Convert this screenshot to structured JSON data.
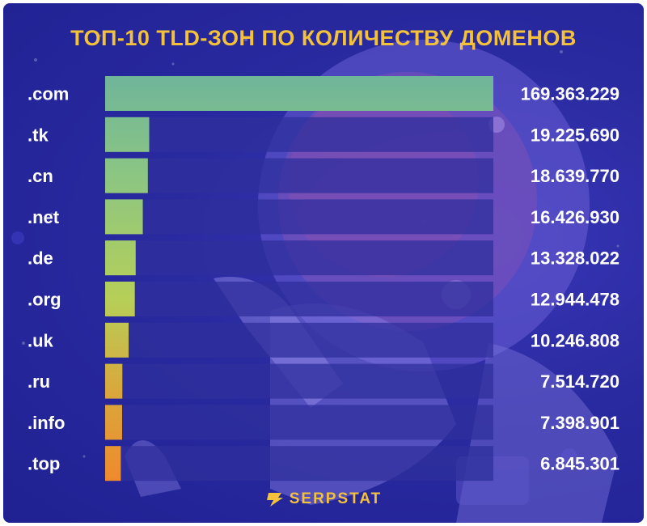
{
  "title": "ТОП-10 TLD-ЗОН ПО КОЛИЧЕСТВУ ДОМЕНОВ",
  "brand": "SERPSTAT",
  "colors": {
    "title": "#f3c13a",
    "track": "#2f2f9c",
    "bar_gradient": [
      "#6fb59a",
      "#8cc682",
      "#b6cf58",
      "#d9a83c",
      "#ef8a2e"
    ]
  },
  "chart_data": {
    "type": "bar",
    "orientation": "horizontal",
    "title": "ТОП-10 TLD-ЗОН ПО КОЛИЧЕСТВУ ДОМЕНОВ",
    "categories": [
      ".com",
      ".tk",
      ".cn",
      ".net",
      ".de",
      ".org",
      ".uk",
      ".ru",
      ".info",
      ".top"
    ],
    "values": [
      169363229,
      19225690,
      18639770,
      16426930,
      13328022,
      12944478,
      10246808,
      7514720,
      7398901,
      6845301
    ],
    "value_labels": [
      "169.363.229",
      "19.225.690",
      "18.639.770",
      "16.426.930",
      "13.328.022",
      "12.944.478",
      "10.246.808",
      "7.514.720",
      "7.398.901",
      "6.845.301"
    ],
    "xlim": [
      0,
      169363229
    ],
    "grid": false,
    "legend": "none"
  }
}
